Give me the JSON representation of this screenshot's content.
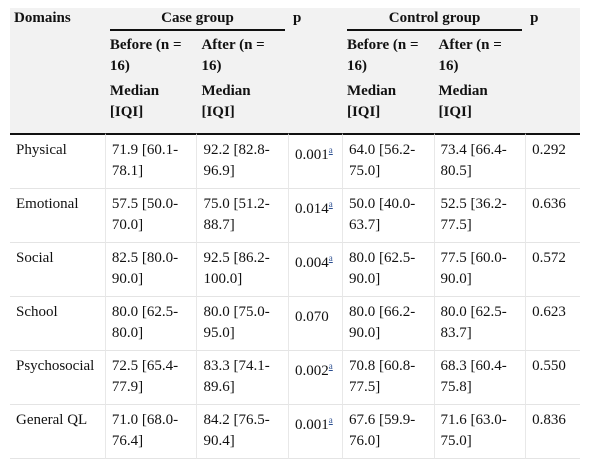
{
  "header": {
    "domains": "Domains",
    "case_group": "Case group",
    "control_group": "Control group",
    "p": "p",
    "before": "Before (n = 16)",
    "after": "After (n = 16)",
    "median_iqi": "Median [IQI]"
  },
  "rows": [
    {
      "domain": "Physical",
      "case_before": "71.9 [60.1-78.1]",
      "case_after": "92.2 [82.8-96.9]",
      "p_case": "0.001",
      "p_case_note": "a",
      "ctrl_before": "64.0 [56.2-75.0]",
      "ctrl_after": "73.4 [66.4-80.5]",
      "p_ctrl": "0.292"
    },
    {
      "domain": "Emotional",
      "case_before": "57.5 [50.0-70.0]",
      "case_after": "75.0 [51.2-88.7]",
      "p_case": "0.014",
      "p_case_note": "a",
      "ctrl_before": "50.0 [40.0-63.7]",
      "ctrl_after": "52.5 [36.2-77.5]",
      "p_ctrl": "0.636"
    },
    {
      "domain": "Social",
      "case_before": "82.5 [80.0-90.0]",
      "case_after": "92.5 [86.2-100.0]",
      "p_case": "0.004",
      "p_case_note": "a",
      "ctrl_before": "80.0 [62.5-90.0]",
      "ctrl_after": "77.5 [60.0-90.0]",
      "p_ctrl": "0.572"
    },
    {
      "domain": "School",
      "case_before": "80.0 [62.5-80.0]",
      "case_after": "80.0 [75.0-95.0]",
      "p_case": "0.070",
      "p_case_note": "",
      "ctrl_before": "80.0 [66.2-90.0]",
      "ctrl_after": "80.0 [62.5-83.7]",
      "p_ctrl": "0.623"
    },
    {
      "domain": "Psychosocial",
      "case_before": "72.5 [65.4-77.9]",
      "case_after": "83.3 [74.1-89.6]",
      "p_case": "0.002",
      "p_case_note": "a",
      "ctrl_before": "70.8 [60.8-77.5]",
      "ctrl_after": "68.3 [60.4-75.8]",
      "p_ctrl": "0.550"
    },
    {
      "domain": "General QL",
      "case_before": "71.0 [68.0-76.4]",
      "case_after": "84.2 [76.5-90.4]",
      "p_case": "0.001",
      "p_case_note": "a",
      "ctrl_before": "67.6 [59.9-76.0]",
      "ctrl_after": "71.6 [63.0-75.0]",
      "p_ctrl": "0.836"
    }
  ]
}
